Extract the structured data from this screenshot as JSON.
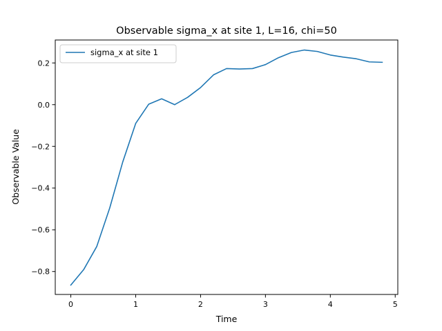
{
  "chart_data": {
    "type": "line",
    "title": "Observable sigma_x at site 1, L=16, chi=50",
    "xlabel": "Time",
    "ylabel": "Observable Value",
    "xlim": [
      -0.24,
      5.04
    ],
    "ylim": [
      -0.91,
      0.31
    ],
    "xticks": [
      0,
      1,
      2,
      3,
      4,
      5
    ],
    "xtick_labels": [
      "0",
      "1",
      "2",
      "3",
      "4",
      "5"
    ],
    "yticks": [
      -0.8,
      -0.6,
      -0.4,
      -0.2,
      0.0,
      0.2
    ],
    "ytick_labels": [
      "−0.8",
      "−0.6",
      "−0.4",
      "−0.2",
      "0.0",
      "0.2"
    ],
    "grid": false,
    "legend_position": "top-left",
    "series": [
      {
        "name": "sigma_x at site 1",
        "color": "#1f77b4",
        "x": [
          0.0,
          0.2,
          0.4,
          0.6,
          0.8,
          1.0,
          1.2,
          1.4,
          1.6,
          1.8,
          2.0,
          2.2,
          2.4,
          2.6,
          2.8,
          3.0,
          3.2,
          3.4,
          3.6,
          3.8,
          4.0,
          4.2,
          4.4,
          4.6,
          4.8
        ],
        "y": [
          -0.865,
          -0.79,
          -0.68,
          -0.495,
          -0.275,
          -0.09,
          0.002,
          0.028,
          0.0,
          0.035,
          0.082,
          0.143,
          0.173,
          0.171,
          0.173,
          0.192,
          0.225,
          0.25,
          0.262,
          0.255,
          0.238,
          0.228,
          0.22,
          0.205,
          0.203
        ]
      }
    ]
  }
}
